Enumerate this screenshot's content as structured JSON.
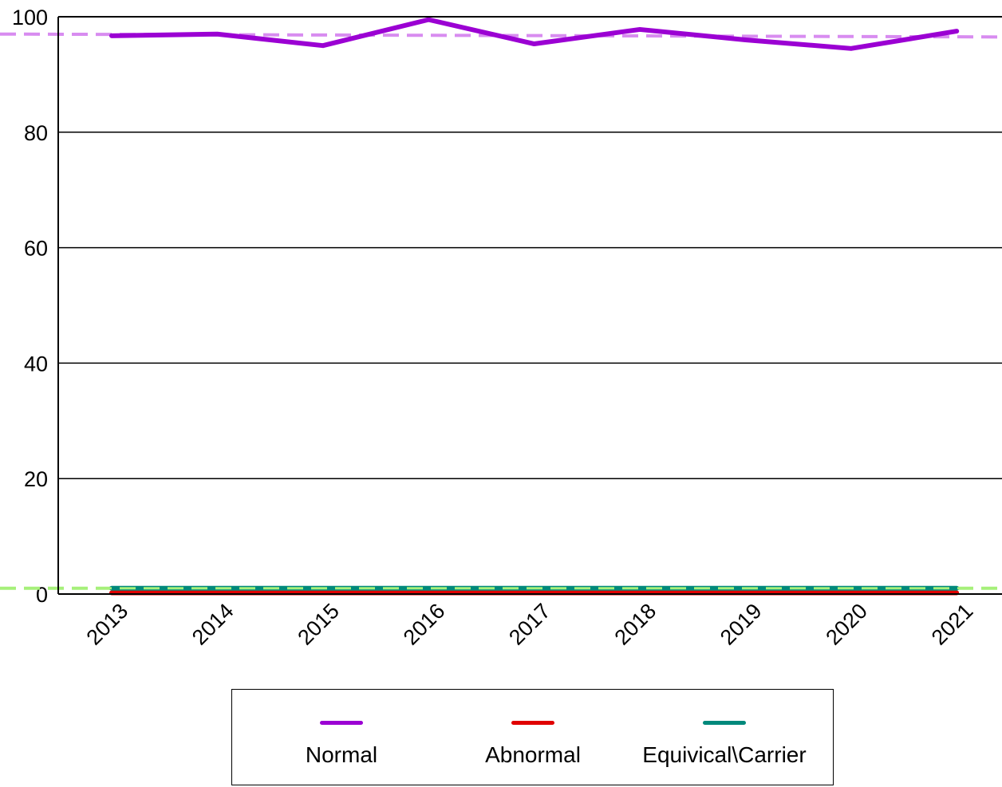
{
  "chart_data": {
    "type": "line",
    "title": "",
    "xlabel": "",
    "ylabel": "",
    "categories": [
      "2013",
      "2014",
      "2015",
      "2016",
      "2017",
      "2018",
      "2019",
      "2020",
      "2021"
    ],
    "ylim": [
      0,
      100
    ],
    "yticks": [
      0,
      20,
      40,
      60,
      80,
      100
    ],
    "grid": "horizontal",
    "legend_position": "bottom",
    "series": [
      {
        "name": "Normal",
        "color": "#9b00d3",
        "values": [
          96.7,
          97.0,
          95.0,
          99.5,
          95.3,
          97.8,
          96.0,
          94.5,
          97.5
        ]
      },
      {
        "name": "Abnormal",
        "color": "#e00000",
        "values": [
          0.2,
          0.2,
          0.2,
          0.2,
          0.2,
          0.2,
          0.2,
          0.2,
          0.2
        ]
      },
      {
        "name": "Equivical\\Carrier",
        "color": "#00897b",
        "values": [
          1.0,
          1.0,
          1.0,
          1.0,
          1.0,
          1.0,
          1.0,
          1.0,
          1.0
        ]
      }
    ],
    "reference_lines": [
      {
        "color": "#d88cf0",
        "style": "dashed",
        "y_start": 97.0,
        "y_end": 96.5
      },
      {
        "color": "#a6f07a",
        "style": "dashed",
        "y_start": 1.0,
        "y_end": 1.0
      }
    ]
  }
}
